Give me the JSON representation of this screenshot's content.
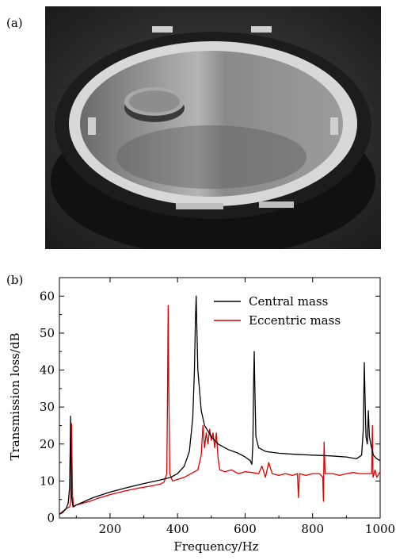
{
  "figure": {
    "panel_a_label": "(a)",
    "panel_b_label": "(b)",
    "photo_description_icon": "photo-membrane-with-mass-icon"
  },
  "chart_data": {
    "type": "line",
    "xlabel": "Frequency/Hz",
    "ylabel": "Transmission loss/dB",
    "xlim": [
      50,
      1000
    ],
    "ylim": [
      0,
      65
    ],
    "xticks": [
      200,
      400,
      600,
      800,
      1000
    ],
    "yticks": [
      0,
      10,
      20,
      30,
      40,
      50,
      60
    ],
    "legend_position": "top-right",
    "grid": false,
    "series": [
      {
        "name": "Central mass",
        "color": "#000000",
        "points": [
          [
            50,
            1
          ],
          [
            60,
            1.5
          ],
          [
            70,
            2.5
          ],
          [
            76,
            4
          ],
          [
            80,
            8
          ],
          [
            82,
            18
          ],
          [
            83,
            27.5
          ],
          [
            84,
            18
          ],
          [
            86,
            6
          ],
          [
            90,
            3
          ],
          [
            100,
            3.5
          ],
          [
            120,
            4.3
          ],
          [
            150,
            5.5
          ],
          [
            200,
            7
          ],
          [
            250,
            8.2
          ],
          [
            300,
            9.3
          ],
          [
            350,
            10.3
          ],
          [
            380,
            11
          ],
          [
            400,
            12
          ],
          [
            420,
            14
          ],
          [
            435,
            18
          ],
          [
            445,
            27
          ],
          [
            450,
            40
          ],
          [
            453,
            54
          ],
          [
            455,
            60
          ],
          [
            457,
            52
          ],
          [
            460,
            40
          ],
          [
            470,
            29
          ],
          [
            480,
            25
          ],
          [
            500,
            22
          ],
          [
            520,
            20
          ],
          [
            550,
            18.5
          ],
          [
            580,
            17.5
          ],
          [
            600,
            16.5
          ],
          [
            615,
            15.5
          ],
          [
            620,
            14.5
          ],
          [
            623,
            20
          ],
          [
            625,
            35
          ],
          [
            627,
            45
          ],
          [
            629,
            35
          ],
          [
            632,
            22
          ],
          [
            640,
            19
          ],
          [
            660,
            18
          ],
          [
            700,
            17.5
          ],
          [
            750,
            17.2
          ],
          [
            800,
            17
          ],
          [
            850,
            16.8
          ],
          [
            900,
            16.5
          ],
          [
            930,
            16
          ],
          [
            945,
            17
          ],
          [
            950,
            24
          ],
          [
            953,
            42
          ],
          [
            956,
            30
          ],
          [
            958,
            22
          ],
          [
            962,
            20
          ],
          [
            965,
            29
          ],
          [
            968,
            22
          ],
          [
            972,
            20
          ],
          [
            980,
            17
          ],
          [
            990,
            16
          ],
          [
            1000,
            15.5
          ]
        ]
      },
      {
        "name": "Eccentric mass",
        "color": "#e00000",
        "points": [
          [
            50,
            1
          ],
          [
            60,
            1.8
          ],
          [
            70,
            2.5
          ],
          [
            80,
            3
          ],
          [
            83,
            4
          ],
          [
            85,
            12
          ],
          [
            86,
            25.5
          ],
          [
            87,
            18
          ],
          [
            89,
            6
          ],
          [
            92,
            3
          ],
          [
            100,
            3.5
          ],
          [
            120,
            4
          ],
          [
            140,
            4.5
          ],
          [
            160,
            5.2
          ],
          [
            200,
            6.3
          ],
          [
            240,
            7.2
          ],
          [
            280,
            8
          ],
          [
            320,
            8.6
          ],
          [
            350,
            9.2
          ],
          [
            360,
            9.7
          ],
          [
            368,
            12
          ],
          [
            370,
            30
          ],
          [
            372,
            57.5
          ],
          [
            374,
            35
          ],
          [
            377,
            12
          ],
          [
            385,
            10
          ],
          [
            420,
            11
          ],
          [
            440,
            12
          ],
          [
            460,
            13
          ],
          [
            470,
            17
          ],
          [
            475,
            25
          ],
          [
            480,
            19
          ],
          [
            485,
            23
          ],
          [
            490,
            20
          ],
          [
            495,
            24
          ],
          [
            500,
            21
          ],
          [
            505,
            23
          ],
          [
            510,
            19
          ],
          [
            515,
            23
          ],
          [
            520,
            16
          ],
          [
            525,
            13
          ],
          [
            540,
            12.5
          ],
          [
            560,
            13
          ],
          [
            580,
            12
          ],
          [
            600,
            12.5
          ],
          [
            620,
            12.3
          ],
          [
            640,
            12
          ],
          [
            650,
            14
          ],
          [
            660,
            11
          ],
          [
            670,
            15
          ],
          [
            680,
            12
          ],
          [
            700,
            11.5
          ],
          [
            720,
            12
          ],
          [
            740,
            11.5
          ],
          [
            755,
            12
          ],
          [
            758,
            5.5
          ],
          [
            761,
            12
          ],
          [
            780,
            11.5
          ],
          [
            800,
            12
          ],
          [
            820,
            12
          ],
          [
            830,
            11
          ],
          [
            832,
            4.5
          ],
          [
            834,
            20.5
          ],
          [
            837,
            12
          ],
          [
            860,
            12
          ],
          [
            880,
            11.5
          ],
          [
            900,
            12
          ],
          [
            920,
            12.3
          ],
          [
            940,
            12
          ],
          [
            960,
            12
          ],
          [
            975,
            12
          ],
          [
            977,
            25
          ],
          [
            979,
            11
          ],
          [
            985,
            13
          ],
          [
            990,
            11
          ],
          [
            1000,
            12.5
          ]
        ]
      }
    ]
  }
}
